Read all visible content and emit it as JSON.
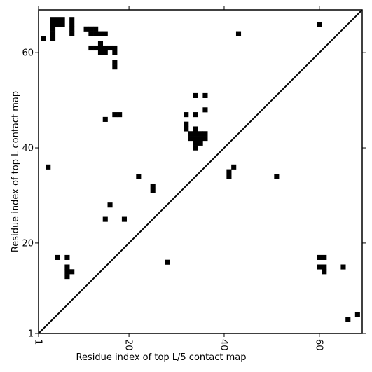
{
  "chart_data": {
    "type": "heatmap",
    "title": "",
    "xlabel": "Residue index of top L/5 contact map",
    "ylabel": "Residue index of top L contact map",
    "xlim": [
      1,
      69
    ],
    "ylim": [
      1,
      69
    ],
    "x_ticks": [
      1,
      20,
      40,
      60
    ],
    "y_ticks": [
      1,
      20,
      40,
      60
    ],
    "x_tick_rotation": -90,
    "diagonal": true,
    "cell_color": "#000000",
    "background": "#ffffff",
    "cells": [
      [
        4,
        67
      ],
      [
        5,
        67
      ],
      [
        6,
        67
      ],
      [
        4,
        66
      ],
      [
        5,
        66
      ],
      [
        6,
        66
      ],
      [
        4,
        65
      ],
      [
        4,
        64
      ],
      [
        4,
        63
      ],
      [
        8,
        67
      ],
      [
        8,
        66
      ],
      [
        8,
        65
      ],
      [
        8,
        64
      ],
      [
        2,
        63
      ],
      [
        11,
        65
      ],
      [
        12,
        65
      ],
      [
        13,
        65
      ],
      [
        12,
        64
      ],
      [
        13,
        64
      ],
      [
        14,
        64
      ],
      [
        15,
        64
      ],
      [
        14,
        62
      ],
      [
        12,
        61
      ],
      [
        13,
        61
      ],
      [
        14,
        61
      ],
      [
        15,
        61
      ],
      [
        16,
        61
      ],
      [
        17,
        61
      ],
      [
        14,
        60
      ],
      [
        15,
        60
      ],
      [
        17,
        60
      ],
      [
        17,
        58
      ],
      [
        17,
        57
      ],
      [
        43,
        64
      ],
      [
        60,
        66
      ],
      [
        34,
        51
      ],
      [
        36,
        51
      ],
      [
        36,
        48
      ],
      [
        32,
        47
      ],
      [
        34,
        47
      ],
      [
        15,
        46
      ],
      [
        17,
        47
      ],
      [
        18,
        47
      ],
      [
        32,
        45
      ],
      [
        32,
        44
      ],
      [
        34,
        44
      ],
      [
        33,
        43
      ],
      [
        34,
        43
      ],
      [
        35,
        43
      ],
      [
        36,
        43
      ],
      [
        33,
        42
      ],
      [
        34,
        42
      ],
      [
        35,
        42
      ],
      [
        36,
        42
      ],
      [
        34,
        41
      ],
      [
        35,
        41
      ],
      [
        34,
        40
      ],
      [
        3,
        36
      ],
      [
        42,
        36
      ],
      [
        41,
        35
      ],
      [
        41,
        34
      ],
      [
        22,
        34
      ],
      [
        51,
        34
      ],
      [
        25,
        32
      ],
      [
        25,
        31
      ],
      [
        16,
        28
      ],
      [
        15,
        25
      ],
      [
        19,
        25
      ],
      [
        5,
        17
      ],
      [
        7,
        17
      ],
      [
        7,
        15
      ],
      [
        7,
        14
      ],
      [
        8,
        14
      ],
      [
        7,
        13
      ],
      [
        28,
        16
      ],
      [
        60,
        17
      ],
      [
        61,
        17
      ],
      [
        60,
        15
      ],
      [
        61,
        15
      ],
      [
        61,
        14
      ],
      [
        65,
        15
      ],
      [
        68,
        5
      ],
      [
        66,
        4
      ]
    ]
  }
}
